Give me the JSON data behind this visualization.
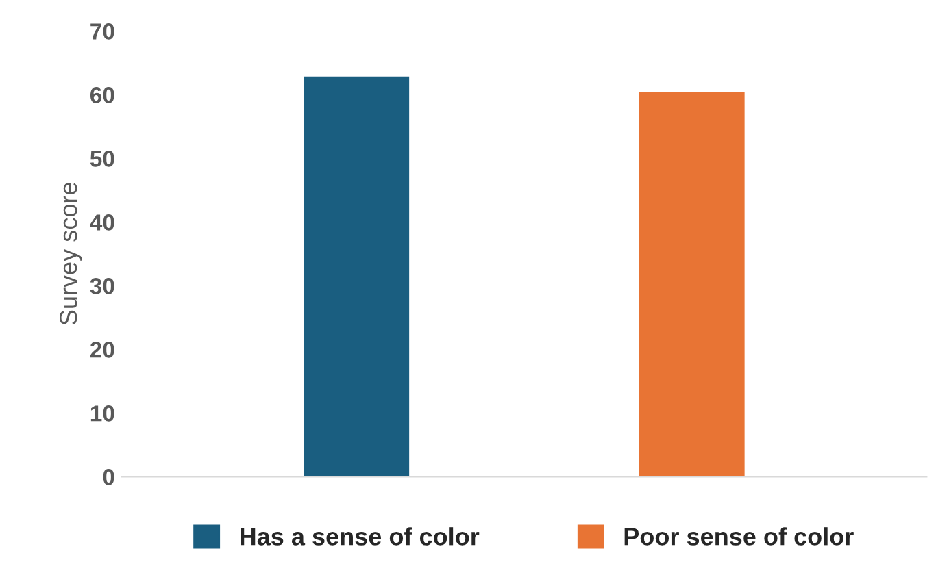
{
  "chart_data": {
    "type": "bar",
    "ylabel": "Survey score",
    "categories": [
      null,
      null
    ],
    "series": [
      {
        "name": "Has a sense of color",
        "color": "#1a5e80",
        "values": [
          63,
          null
        ]
      },
      {
        "name": "Poor sense of color",
        "color": "#e87434",
        "values": [
          null,
          60.5
        ]
      }
    ],
    "ylim": [
      0,
      70
    ],
    "yticks": [
      0,
      10,
      20,
      30,
      40,
      50,
      60,
      70
    ],
    "grid": false,
    "legend": "bottom"
  }
}
